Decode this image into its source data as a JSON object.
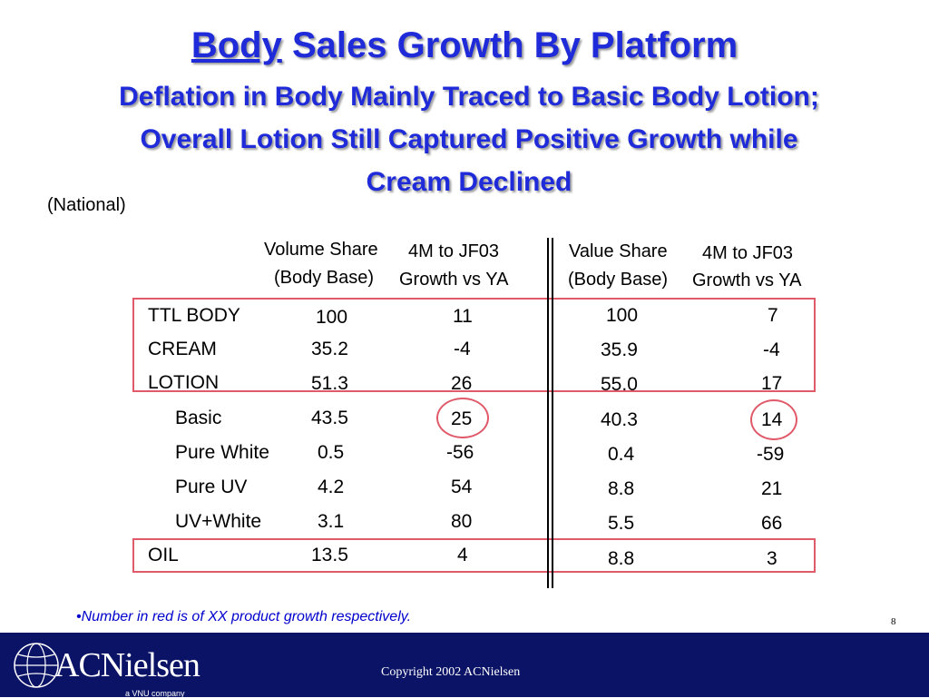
{
  "slide": {
    "title_underlined": "Body",
    "title_rest": " Sales Growth By Platform",
    "subtitle_line1": "Deflation in Body Mainly Traced to Basic Body Lotion;",
    "subtitle_line2": "Overall Lotion Still Captured Positive Growth while",
    "subtitle_line3": "Cream Declined",
    "scope": "(National)",
    "note": "•Number in red is of XX product growth respectively.",
    "page_number": "8",
    "copyright": "Copyright 2002 ACNielsen",
    "logo_text": "ACNielsen",
    "logo_sub": "a VNU company"
  },
  "table": {
    "headers": {
      "vol_share_1": "Volume Share",
      "vol_share_2": "(Body Base)",
      "vol_growth_1": "4M to JF03",
      "vol_growth_2": "Growth vs YA",
      "val_share_1": "Value Share",
      "val_share_2": "(Body Base)",
      "val_growth_1": "4M to JF03",
      "val_growth_2": "Growth vs YA"
    },
    "rows": [
      {
        "label": "TTL BODY",
        "vol_share": "100",
        "vol_growth": "11",
        "val_share": "100",
        "val_growth": "7"
      },
      {
        "label": "CREAM",
        "vol_share": "35.2",
        "vol_growth": "-4",
        "val_share": "35.9",
        "val_growth": "-4"
      },
      {
        "label": "LOTION",
        "vol_share": "51.3",
        "vol_growth": "26",
        "val_share": "55.0",
        "val_growth": "17"
      },
      {
        "label": "Basic",
        "vol_share": "43.5",
        "vol_growth": "25",
        "val_share": "40.3",
        "val_growth": "14"
      },
      {
        "label": "Pure White",
        "vol_share": "0.5",
        "vol_growth": "-56",
        "val_share": "0.4",
        "val_growth": "-59"
      },
      {
        "label": "Pure UV",
        "vol_share": "4.2",
        "vol_growth": "54",
        "val_share": "8.8",
        "val_growth": "21"
      },
      {
        "label": "UV+White",
        "vol_share": "3.1",
        "vol_growth": "80",
        "val_share": "5.5",
        "val_growth": "66"
      },
      {
        "label": "OIL",
        "vol_share": "13.5",
        "vol_growth": "4",
        "val_share": "8.8",
        "val_growth": "3"
      }
    ]
  },
  "colors": {
    "title": "#1f2bd8",
    "highlight": "#e05a6a",
    "footer": "#0b1366",
    "note": "#0000cc"
  }
}
